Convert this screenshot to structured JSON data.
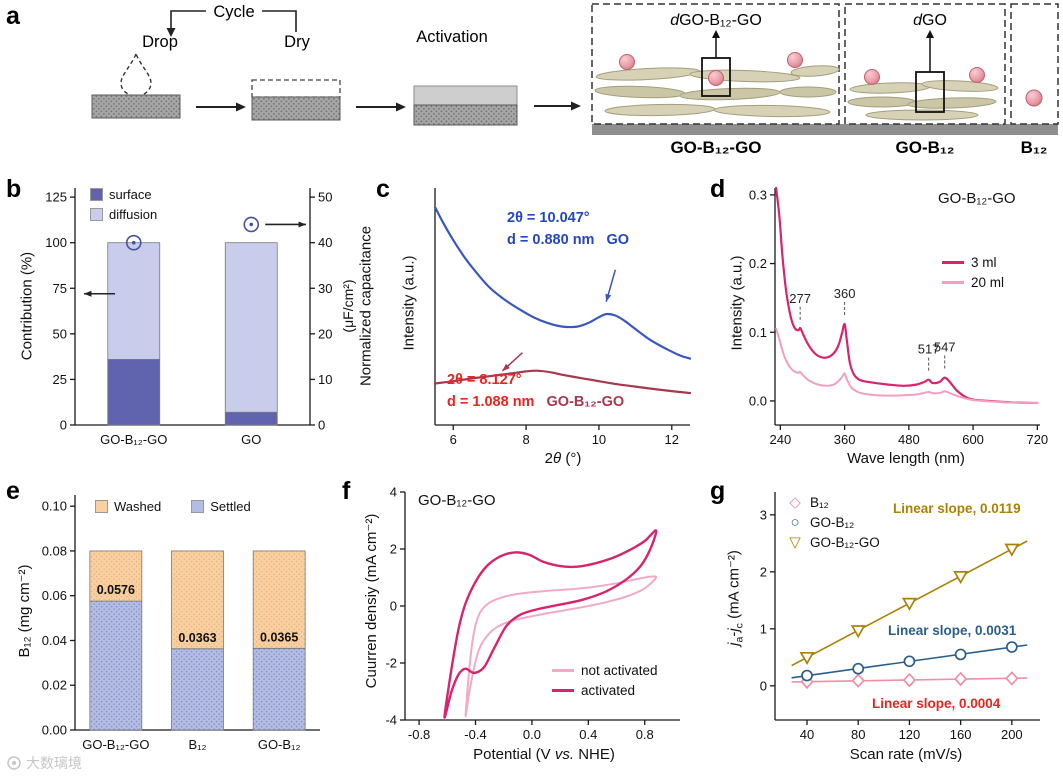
{
  "watermark": {
    "text": "大数璃境"
  },
  "panel_letters": {
    "a": "a",
    "b": "b",
    "c": "c",
    "d": "d",
    "e": "e",
    "f": "f",
    "g": "g"
  },
  "panel_a": {
    "cycle_label": "Cycle",
    "drop_label": "Drop",
    "dry_label": "Dry",
    "activation_label": "Activation",
    "box1": {
      "d": "d",
      "name": "GO-B₁₂-GO",
      "bottom": "GO-B₁₂-GO"
    },
    "box2": {
      "d": "d",
      "name": "GO",
      "bottom": "GO-B₁₂"
    },
    "box3": {
      "bottom": "B₁₂"
    }
  },
  "chart_data": [
    {
      "id": "b",
      "type": "bar",
      "categories": [
        "GO-B₁₂-GO",
        "GO"
      ],
      "series": [
        {
          "name": "surface",
          "color": "#6064ae",
          "values": [
            36,
            7
          ]
        },
        {
          "name": "diffusion",
          "color": "#c9cdeb",
          "values": [
            64,
            93
          ]
        }
      ],
      "ylabel": "Contribution (%)",
      "ylim": [
        0,
        130
      ],
      "yticks": [
        "0",
        "25",
        "50",
        "75",
        "100",
        "125"
      ],
      "y2label_line1": "Normalized capacitance",
      "y2label_line2": "(μF/cm²)",
      "y2lim": [
        0,
        52
      ],
      "y2ticks": [
        "0",
        "10",
        "20",
        "30",
        "40",
        "50"
      ],
      "markers": {
        "symbol": "circle-dot",
        "color": "#4553a4",
        "y2_values": [
          40,
          44
        ]
      },
      "axis_arrows": {
        "left_y": 72,
        "right_y2": 44
      }
    },
    {
      "id": "c",
      "type": "line",
      "xlabel_parts": {
        "pre": "2",
        "theta": "θ",
        "post": " (°)"
      },
      "ylabel": "Intensity (a.u.)",
      "xlim": [
        5.5,
        12.5
      ],
      "xticks": [
        "6",
        "8",
        "10",
        "12"
      ],
      "ylim": [
        0,
        1
      ],
      "yticks": [],
      "series": [
        {
          "name": "GO",
          "color": "#3a57c0",
          "width": 2.2,
          "points": [
            [
              5.5,
              0.92
            ],
            [
              5.7,
              0.86
            ],
            [
              6,
              0.78
            ],
            [
              6.3,
              0.71
            ],
            [
              6.6,
              0.65
            ],
            [
              7,
              0.58
            ],
            [
              7.4,
              0.53
            ],
            [
              7.8,
              0.49
            ],
            [
              8.2,
              0.455
            ],
            [
              8.6,
              0.43
            ],
            [
              9,
              0.415
            ],
            [
              9.4,
              0.415
            ],
            [
              9.7,
              0.43
            ],
            [
              10,
              0.455
            ],
            [
              10.2,
              0.468
            ],
            [
              10.45,
              0.462
            ],
            [
              10.7,
              0.44
            ],
            [
              11,
              0.405
            ],
            [
              11.4,
              0.36
            ],
            [
              11.8,
              0.325
            ],
            [
              12.2,
              0.295
            ],
            [
              12.5,
              0.28
            ]
          ]
        },
        {
          "name": "GO-B₁₂-GO",
          "color": "#a63950",
          "width": 2.2,
          "points": [
            [
              5.5,
              0.175
            ],
            [
              6,
              0.185
            ],
            [
              6.5,
              0.196
            ],
            [
              7,
              0.206
            ],
            [
              7.5,
              0.216
            ],
            [
              8,
              0.226
            ],
            [
              8.3,
              0.229
            ],
            [
              8.7,
              0.222
            ],
            [
              9,
              0.212
            ],
            [
              9.5,
              0.198
            ],
            [
              10,
              0.185
            ],
            [
              10.5,
              0.172
            ],
            [
              11,
              0.162
            ],
            [
              11.5,
              0.152
            ],
            [
              12,
              0.143
            ],
            [
              12.5,
              0.135
            ]
          ]
        }
      ],
      "annotations": [
        {
          "line1": "2θ = 10.047°",
          "line2": "d = 0.880 nm",
          "name": "GO",
          "color": "#2545c4",
          "name_color": "#2545c4"
        },
        {
          "line1": "2θ = 8.127°",
          "line2": "d = 1.088 nm",
          "name": "GO-B₁₂-GO",
          "color": "#e8251f",
          "name_color": "#a63950"
        }
      ],
      "arrows": [
        {
          "x1": 10.45,
          "y1": 0.655,
          "x2": 10.2,
          "y2": 0.52,
          "color": "#3a57c0"
        },
        {
          "x1": 7.9,
          "y1": 0.305,
          "x2": 7.35,
          "y2": 0.228,
          "color": "#a63950"
        }
      ]
    },
    {
      "id": "d",
      "type": "line",
      "title": "GO-B₁₂-GO",
      "xlabel": "Wave length (nm)",
      "ylabel": "Intensity (a.u.)",
      "xlim": [
        230,
        725
      ],
      "xticks": [
        "240",
        "360",
        "480",
        "600",
        "720"
      ],
      "ylim": [
        -0.035,
        0.31
      ],
      "yticks": [
        "0.0",
        "0.1",
        "0.2",
        "0.3"
      ],
      "series": [
        {
          "name": "3 ml",
          "color": "#d6256e",
          "width": 2.2,
          "points": [
            [
              232,
              0.31
            ],
            [
              238,
              0.27
            ],
            [
              244,
              0.21
            ],
            [
              250,
              0.165
            ],
            [
              256,
              0.135
            ],
            [
              262,
              0.115
            ],
            [
              268,
              0.105
            ],
            [
              274,
              0.103
            ],
            [
              277,
              0.106
            ],
            [
              282,
              0.098
            ],
            [
              290,
              0.085
            ],
            [
              300,
              0.073
            ],
            [
              312,
              0.065
            ],
            [
              325,
              0.063
            ],
            [
              338,
              0.068
            ],
            [
              348,
              0.08
            ],
            [
              355,
              0.098
            ],
            [
              360,
              0.112
            ],
            [
              364,
              0.09
            ],
            [
              370,
              0.055
            ],
            [
              378,
              0.038
            ],
            [
              390,
              0.03
            ],
            [
              410,
              0.027
            ],
            [
              440,
              0.024
            ],
            [
              470,
              0.022
            ],
            [
              495,
              0.024
            ],
            [
              510,
              0.028
            ],
            [
              517,
              0.031
            ],
            [
              525,
              0.026
            ],
            [
              538,
              0.028
            ],
            [
              547,
              0.034
            ],
            [
              556,
              0.028
            ],
            [
              570,
              0.015
            ],
            [
              585,
              0.006
            ],
            [
              600,
              0.002
            ],
            [
              630,
              0
            ],
            [
              670,
              -0.002
            ],
            [
              720,
              -0.003
            ]
          ]
        },
        {
          "name": "20 ml",
          "color": "#f2a0c0",
          "width": 2,
          "points": [
            [
              232,
              0.105
            ],
            [
              238,
              0.09
            ],
            [
              244,
              0.073
            ],
            [
              250,
              0.06
            ],
            [
              258,
              0.049
            ],
            [
              266,
              0.043
            ],
            [
              274,
              0.041
            ],
            [
              277,
              0.042
            ],
            [
              284,
              0.036
            ],
            [
              295,
              0.029
            ],
            [
              310,
              0.024
            ],
            [
              325,
              0.022
            ],
            [
              340,
              0.024
            ],
            [
              350,
              0.03
            ],
            [
              357,
              0.037
            ],
            [
              360,
              0.04
            ],
            [
              364,
              0.032
            ],
            [
              372,
              0.02
            ],
            [
              385,
              0.013
            ],
            [
              400,
              0.01
            ],
            [
              430,
              0.008
            ],
            [
              460,
              0.008
            ],
            [
              490,
              0.009
            ],
            [
              505,
              0.011
            ],
            [
              517,
              0.013
            ],
            [
              527,
              0.011
            ],
            [
              540,
              0.012
            ],
            [
              547,
              0.014
            ],
            [
              558,
              0.011
            ],
            [
              575,
              0.006
            ],
            [
              595,
              0.002
            ],
            [
              620,
              0
            ],
            [
              660,
              -0.002
            ],
            [
              720,
              -0.003
            ]
          ]
        }
      ],
      "peak_labels": [
        {
          "text": "277",
          "x": 277,
          "v": 0.108
        },
        {
          "text": "360",
          "x": 360,
          "v": 0.115
        },
        {
          "text": "517",
          "x": 517,
          "v": 0.034
        },
        {
          "text": "547",
          "x": 547,
          "v": 0.037
        }
      ]
    },
    {
      "id": "e",
      "type": "bar",
      "categories": [
        "GO-B₁₂-GO",
        "B₁₂",
        "GO-B₁₂"
      ],
      "series": [
        {
          "name": "Settled",
          "color": "#b3bce2",
          "dot_color": "#8691c9",
          "values": [
            0.0576,
            0.0363,
            0.0365
          ]
        },
        {
          "name": "Washed",
          "color": "#f9d0a2",
          "dot_color": "#edb27c",
          "values": [
            0.0224,
            0.0437,
            0.0435
          ]
        }
      ],
      "value_labels": [
        "0.0576",
        "0.0363",
        "0.0365"
      ],
      "ylabel": "B₁₂ (mg cm⁻²)",
      "ylim": [
        0,
        0.105
      ],
      "yticks": [
        "0.00",
        "0.02",
        "0.04",
        "0.06",
        "0.08",
        "0.10"
      ]
    },
    {
      "id": "f",
      "type": "line",
      "title": "GO-B₁₂-GO",
      "xlabel_parts": {
        "pre": "Potential (V ",
        "italic": "vs.",
        "post": " NHE)"
      },
      "ylabel": "Cuurren densiy (mA cm⁻²)",
      "xlim": [
        -0.9,
        1.05
      ],
      "xticks": [
        "-0.8",
        "-0.4",
        "0.0",
        "0.4",
        "0.8"
      ],
      "ylim": [
        -4,
        4
      ],
      "yticks": [
        "-4",
        "-2",
        "0",
        "2",
        "4"
      ],
      "series": [
        {
          "name": "not activated",
          "color": "#f2aac6",
          "width": 2,
          "closed": true,
          "points": [
            [
              -0.47,
              -3.85
            ],
            [
              -0.44,
              -2.0
            ],
            [
              -0.41,
              -0.9
            ],
            [
              -0.37,
              -0.25
            ],
            [
              -0.3,
              0.12
            ],
            [
              -0.2,
              0.32
            ],
            [
              -0.08,
              0.44
            ],
            [
              0.08,
              0.52
            ],
            [
              0.25,
              0.58
            ],
            [
              0.42,
              0.66
            ],
            [
              0.58,
              0.78
            ],
            [
              0.72,
              0.92
            ],
            [
              0.83,
              1.02
            ],
            [
              0.88,
              1.0
            ],
            [
              0.8,
              0.62
            ],
            [
              0.68,
              0.35
            ],
            [
              0.54,
              0.15
            ],
            [
              0.38,
              -0.02
            ],
            [
              0.22,
              -0.16
            ],
            [
              0.06,
              -0.3
            ],
            [
              -0.08,
              -0.44
            ],
            [
              -0.2,
              -0.62
            ],
            [
              -0.3,
              -0.95
            ],
            [
              -0.38,
              -1.6
            ],
            [
              -0.44,
              -2.9
            ]
          ]
        },
        {
          "name": "activated",
          "color": "#d6256e",
          "width": 2.4,
          "closed": true,
          "points": [
            [
              -0.62,
              -3.9
            ],
            [
              -0.57,
              -2.2
            ],
            [
              -0.52,
              -0.8
            ],
            [
              -0.47,
              0.1
            ],
            [
              -0.4,
              0.85
            ],
            [
              -0.32,
              1.4
            ],
            [
              -0.22,
              1.75
            ],
            [
              -0.12,
              1.88
            ],
            [
              -0.02,
              1.8
            ],
            [
              0.08,
              1.55
            ],
            [
              0.2,
              1.4
            ],
            [
              0.32,
              1.38
            ],
            [
              0.45,
              1.5
            ],
            [
              0.58,
              1.7
            ],
            [
              0.7,
              1.98
            ],
            [
              0.8,
              2.28
            ],
            [
              0.88,
              2.65
            ],
            [
              0.84,
              2.0
            ],
            [
              0.77,
              1.4
            ],
            [
              0.66,
              0.9
            ],
            [
              0.52,
              0.5
            ],
            [
              0.36,
              0.22
            ],
            [
              0.2,
              0.05
            ],
            [
              0.05,
              -0.1
            ],
            [
              -0.08,
              -0.3
            ],
            [
              -0.18,
              -0.7
            ],
            [
              -0.27,
              -1.5
            ],
            [
              -0.34,
              -2.15
            ],
            [
              -0.41,
              -2.35
            ],
            [
              -0.47,
              -2.2
            ],
            [
              -0.52,
              -2.4
            ],
            [
              -0.57,
              -3.0
            ]
          ]
        }
      ],
      "legend": [
        "not activated",
        "activated"
      ]
    },
    {
      "id": "g",
      "type": "scatter",
      "xlabel": "Scan rate (mV/s)",
      "ylabel_parts": {
        "j1": "j",
        "sub1": "a",
        "minus": "-",
        "j2": "j",
        "sub2": "c",
        "units": " (mA cm⁻²)"
      },
      "xlim": [
        15,
        222
      ],
      "xticks": [
        "40",
        "80",
        "120",
        "160",
        "200"
      ],
      "ylim": [
        -0.6,
        3.4
      ],
      "yticks": [
        "0",
        "1",
        "2",
        "3"
      ],
      "series": [
        {
          "name": "B₁₂",
          "marker": "diamond",
          "glyph": "◇",
          "color": "#ef8fa6",
          "x": [
            40,
            80,
            120,
            160,
            200
          ],
          "y": [
            0.07,
            0.09,
            0.1,
            0.12,
            0.13
          ]
        },
        {
          "name": "GO-B₁₂",
          "marker": "circle",
          "glyph": "○",
          "color": "#2a5e8c",
          "x": [
            40,
            80,
            120,
            160,
            200
          ],
          "y": [
            0.18,
            0.3,
            0.43,
            0.55,
            0.68
          ]
        },
        {
          "name": "GO-B₁₂-GO",
          "marker": "triangle-down",
          "glyph": "▽",
          "color": "#ab8206",
          "x": [
            40,
            80,
            120,
            160,
            200
          ],
          "y": [
            0.5,
            0.97,
            1.45,
            1.92,
            2.4
          ]
        }
      ],
      "annotations": [
        {
          "text": "Linear slope, 0.0119",
          "color": "#ab8206"
        },
        {
          "text": "Linear slope, 0.0031",
          "color": "#2a5e8c"
        },
        {
          "text": "Linear slope, 0.0004",
          "color": "#e8251f"
        }
      ]
    }
  ]
}
